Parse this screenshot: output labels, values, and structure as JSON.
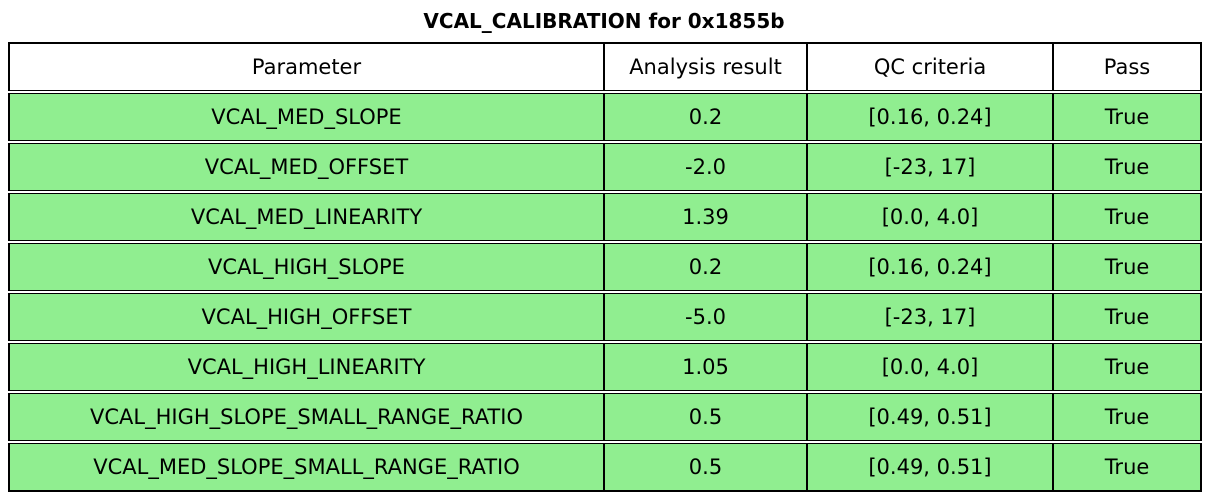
{
  "title": "VCAL_CALIBRATION for 0x1855b",
  "colors": {
    "page_bg": "#ffffff",
    "header_bg": "#ffffff",
    "pass_row_bg": "#90ee90",
    "border": "#000000",
    "text": "#000000"
  },
  "chart_data": {
    "type": "table",
    "title": "VCAL_CALIBRATION for 0x1855b",
    "columns": [
      "Parameter",
      "Analysis result",
      "QC criteria",
      "Pass"
    ],
    "rows": [
      [
        "VCAL_MED_SLOPE",
        "0.2",
        "[0.16, 0.24]",
        "True"
      ],
      [
        "VCAL_MED_OFFSET",
        "-2.0",
        "[-23, 17]",
        "True"
      ],
      [
        "VCAL_MED_LINEARITY",
        "1.39",
        "[0.0, 4.0]",
        "True"
      ],
      [
        "VCAL_HIGH_SLOPE",
        "0.2",
        "[0.16, 0.24]",
        "True"
      ],
      [
        "VCAL_HIGH_OFFSET",
        "-5.0",
        "[-23, 17]",
        "True"
      ],
      [
        "VCAL_HIGH_LINEARITY",
        "1.05",
        "[0.0, 4.0]",
        "True"
      ],
      [
        "VCAL_HIGH_SLOPE_SMALL_RANGE_RATIO",
        "0.5",
        "[0.49, 0.51]",
        "True"
      ],
      [
        "VCAL_MED_SLOPE_SMALL_RANGE_RATIO",
        "0.5",
        "[0.49, 0.51]",
        "True"
      ]
    ],
    "legend": "none",
    "grid": "table-borders"
  }
}
